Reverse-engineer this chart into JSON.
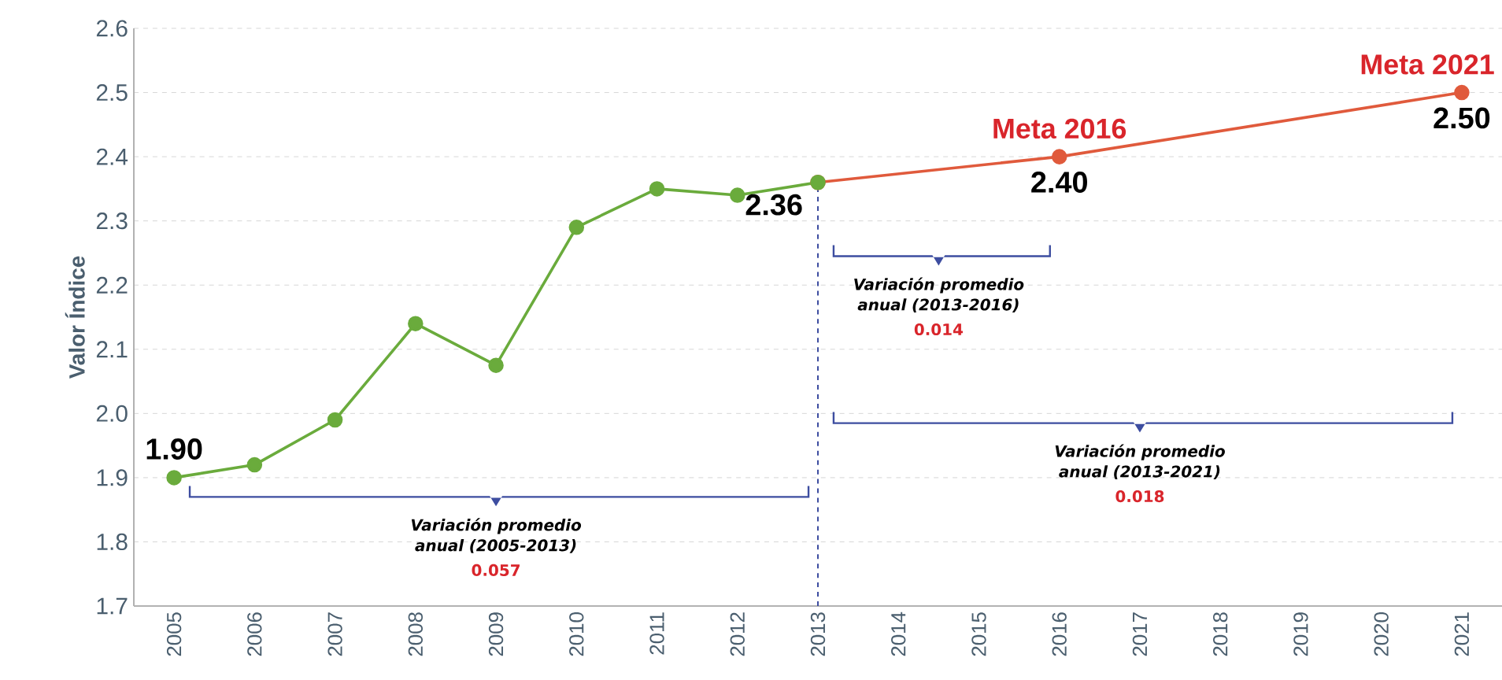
{
  "chart_data": {
    "type": "line",
    "ylabel": "Valor Índice",
    "xlim": [
      2004.5,
      2021.5
    ],
    "xticks": [
      2005,
      2006,
      2007,
      2008,
      2009,
      2010,
      2011,
      2012,
      2013,
      2014,
      2015,
      2016,
      2017,
      2018,
      2019,
      2020,
      2021
    ],
    "ylim": [
      1.7,
      2.6
    ],
    "yticks": [
      1.7,
      1.8,
      1.9,
      {
        "value": 2,
        "label": "2.0"
      },
      2.1,
      2.2,
      2.3,
      2.4,
      2.5,
      2.6
    ],
    "grid": "y",
    "marker": "circle",
    "line_style": "solid",
    "series": [
      {
        "color": "#6aab3c",
        "x": [
          2005,
          2006,
          2007,
          2008,
          2009,
          2010,
          2011,
          2012,
          2013
        ],
        "values": [
          1.9,
          1.92,
          1.99,
          2.14,
          2.075,
          2.29,
          2.35,
          2.34,
          2.36
        ],
        "value_labels": [
          "1.90",
          null,
          null,
          null,
          null,
          null,
          null,
          null,
          "2.36"
        ]
      },
      {
        "color": "#e05a3c",
        "x": [
          2013,
          2016,
          2021
        ],
        "values": [
          2.36,
          2.4,
          2.5
        ],
        "value_labels": [
          null,
          "2.40",
          "2.50"
        ]
      }
    ],
    "ref_lines": [
      {
        "axis": "x",
        "value": 2013,
        "color": "#3d4da0",
        "line_style": "dashed"
      }
    ],
    "annotations": [
      {
        "text": "Meta 2016",
        "x": 2016,
        "y": 2.4
      },
      {
        "text": "Meta 2021",
        "x": 2021,
        "y": 2.5
      },
      "Variación promedio anual (2005-2013)",
      "0.057",
      "Variación promedio anual (2013-2016)",
      "0.014",
      "Variación promedio anual (2013-2021)",
      "0.018"
    ]
  }
}
